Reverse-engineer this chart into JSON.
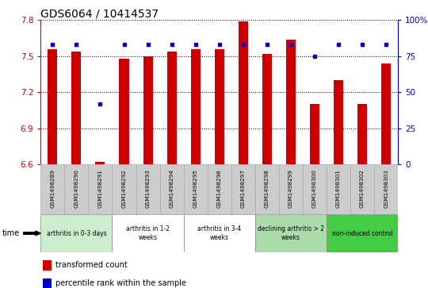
{
  "title": "GDS6064 / 10414537",
  "samples": [
    "GSM1498289",
    "GSM1498290",
    "GSM1498291",
    "GSM1498292",
    "GSM1498293",
    "GSM1498294",
    "GSM1498295",
    "GSM1498296",
    "GSM1498297",
    "GSM1498298",
    "GSM1498299",
    "GSM1498300",
    "GSM1498301",
    "GSM1498302",
    "GSM1498303"
  ],
  "transformed_count": [
    7.56,
    7.54,
    6.62,
    7.48,
    7.5,
    7.54,
    7.56,
    7.56,
    7.79,
    7.52,
    7.64,
    7.1,
    7.3,
    7.1,
    7.44
  ],
  "percentile_rank": [
    83,
    83,
    42,
    83,
    83,
    83,
    83,
    83,
    83,
    83,
    83,
    75,
    83,
    83,
    83
  ],
  "ylim_left": [
    6.6,
    7.8
  ],
  "ylim_right": [
    0,
    100
  ],
  "yticks_left": [
    6.6,
    6.9,
    7.2,
    7.5,
    7.8
  ],
  "yticks_right": [
    0,
    25,
    50,
    75,
    100
  ],
  "bar_color": "#cc0000",
  "dot_color": "#0000cc",
  "bar_width": 0.4,
  "groups": [
    {
      "label": "arthritis in 0-3 days",
      "start": 0,
      "end": 3,
      "color": "#cceecc"
    },
    {
      "label": "arthritis in 1-2\nweeks",
      "start": 3,
      "end": 6,
      "color": "#ffffff"
    },
    {
      "label": "arthritis in 3-4\nweeks",
      "start": 6,
      "end": 9,
      "color": "#ffffff"
    },
    {
      "label": "declining arthritis > 2\nweeks",
      "start": 9,
      "end": 12,
      "color": "#aaddaa"
    },
    {
      "label": "non-induced control",
      "start": 12,
      "end": 15,
      "color": "#44cc44"
    }
  ],
  "title_fontsize": 10,
  "axis_color_left": "#cc0000",
  "axis_color_right": "#0000cc",
  "sample_box_color": "#cccccc",
  "sample_box_edge": "#aaaaaa"
}
